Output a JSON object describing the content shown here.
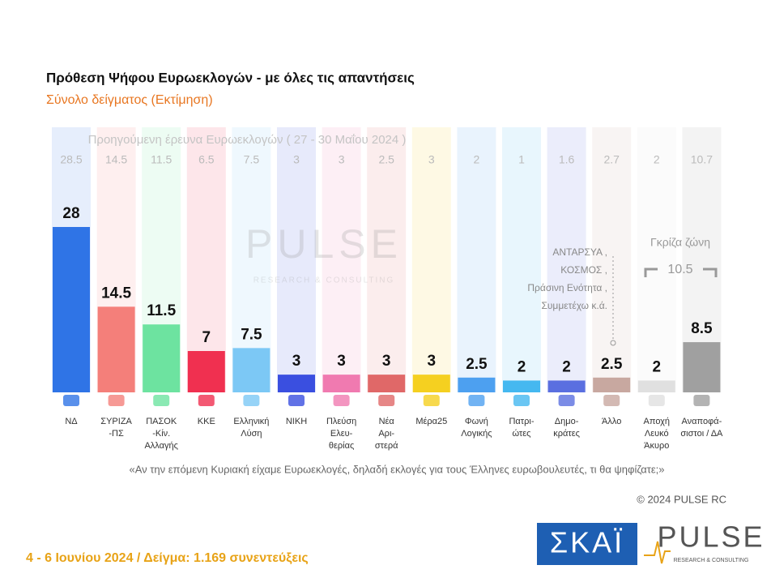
{
  "chart_data": {
    "type": "bar",
    "title": "Πρόθεση Ψήφου Ευρωεκλογών - με όλες τις απαντήσεις",
    "subtitle": "Σύνολο δείγματος   (Εκτίμηση)",
    "categories": [
      [
        "ΝΔ"
      ],
      [
        "ΣΥΡΙΖΑ",
        "-ΠΣ"
      ],
      [
        "ΠΑΣΟΚ",
        "-Κίν.",
        "Αλλαγής"
      ],
      [
        "ΚΚΕ"
      ],
      [
        "Ελληνική",
        "Λύση"
      ],
      [
        "ΝΙΚΗ"
      ],
      [
        "Πλεύση",
        "Ελευ-",
        "θερίας"
      ],
      [
        "Νέα",
        "Αρι-",
        "στερά"
      ],
      [
        "Μέρα25"
      ],
      [
        "Φωνή",
        "Λογικής"
      ],
      [
        "Πατρι-",
        "ώτες"
      ],
      [
        "Δημο-",
        "κράτες"
      ],
      [
        "Άλλο"
      ],
      [
        "Αποχή",
        "Λευκό",
        "Άκυρο"
      ],
      [
        "Αναποφά-",
        "σιστοι / ΔΑ"
      ]
    ],
    "values": [
      28,
      14.5,
      11.5,
      7,
      7.5,
      3,
      3,
      3,
      3,
      2.5,
      2,
      2,
      2.5,
      2,
      8.5
    ],
    "colors": [
      "#2f74e6",
      "#f47f7a",
      "#6de3a0",
      "#f03050",
      "#7cc8f5",
      "#3a4fe0",
      "#f07ab0",
      "#e06868",
      "#f5d020",
      "#4da0f0",
      "#45b8f0",
      "#5a6fe0",
      "#c8a8a0",
      "#e0e0e0",
      "#a0a0a0"
    ],
    "ylim": [
      0,
      28
    ],
    "previous": {
      "label": "Προηγούμενη έρευνα Ευρωεκλογών ( 27 - 30 Μαΐου 2024 )",
      "values": [
        28.5,
        14.5,
        11.5,
        6.5,
        7.5,
        3,
        3,
        2.5,
        3,
        2,
        1,
        1.6,
        2.7,
        2,
        10.7
      ]
    },
    "other_note": [
      "ΑΝΤΑΡΣΥΑ ,",
      "ΚΟΣΜΟΣ ,",
      "Πράσινη Ενότητα ,",
      "Συμμετέχω  κ.ά."
    ],
    "grey_zone": {
      "label": "Γκρίζα ζώνη",
      "value": 10.5
    },
    "question": "«Αν την επόμενη Κυριακή είχαμε Ευρωεκλογές, δηλαδή εκλογές για τους Έλληνες ευρωβουλευτές, τι θα ψηφίζατε;»",
    "copyright": "© 2024 PULSE RC",
    "footer": "4 - 6  Ιουνίου 2024  /  Δείγμα:  1.169 συνεντεύξεις",
    "logos": {
      "skai": "ΣΚΑΪ",
      "pulse": "PULSE",
      "pulse_sub": "RESEARCH & CONSULTING"
    }
  }
}
